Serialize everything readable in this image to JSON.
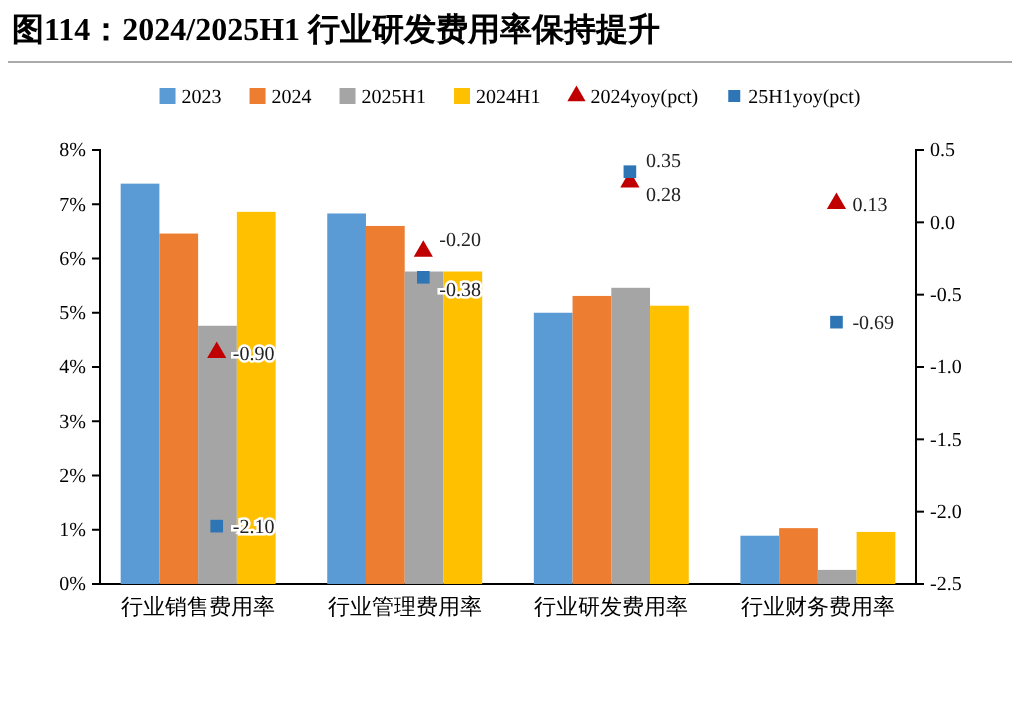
{
  "chart_data": {
    "type": "bar",
    "title": "图114：2024/2025H1 行业研发费用率保持提升",
    "categories": [
      "行业销售费用率",
      "行业管理费用率",
      "行业研发费用率",
      "行业财务费用率"
    ],
    "series": [
      {
        "name": "2023",
        "color": "#5b9bd5",
        "values": [
          7.38,
          6.83,
          5.0,
          0.89
        ]
      },
      {
        "name": "2024",
        "color": "#ed7d31",
        "values": [
          6.46,
          6.6,
          5.31,
          1.03
        ]
      },
      {
        "name": "2025H1",
        "color": "#a5a5a5",
        "values": [
          4.76,
          5.76,
          5.46,
          0.26
        ]
      },
      {
        "name": "2024H1",
        "color": "#ffc000",
        "values": [
          6.86,
          5.76,
          5.13,
          0.96
        ]
      },
      {
        "name": "2024yoy(pct)",
        "type": "scatter",
        "axis": "y2",
        "marker": "triangle",
        "color": "#c00000",
        "values": [
          -0.9,
          -0.2,
          0.28,
          0.13
        ],
        "value_labels": [
          "-0.90",
          "-0.20",
          "0.28",
          "0.13"
        ]
      },
      {
        "name": "25H1yoy(pct)",
        "type": "scatter",
        "axis": "y2",
        "marker": "square",
        "color": "#2e75b6",
        "values": [
          -2.1,
          -0.38,
          0.35,
          -0.69
        ],
        "value_labels": [
          "-2.10",
          "-0.38",
          "0.35",
          "-0.69"
        ]
      }
    ],
    "ylim": [
      0,
      8
    ],
    "yticks": [
      {
        "value": 0,
        "label": "0%"
      },
      {
        "value": 1,
        "label": "1%"
      },
      {
        "value": 2,
        "label": "2%"
      },
      {
        "value": 3,
        "label": "3%"
      },
      {
        "value": 4,
        "label": "4%"
      },
      {
        "value": 5,
        "label": "5%"
      },
      {
        "value": 6,
        "label": "6%"
      },
      {
        "value": 7,
        "label": "7%"
      },
      {
        "value": 8,
        "label": "8%"
      }
    ],
    "y2lim": [
      -2.5,
      0.5
    ],
    "y2ticks": [
      {
        "value": -2.5,
        "label": "-2.5"
      },
      {
        "value": -2,
        "label": "-2.0"
      },
      {
        "value": -1.5,
        "label": "-1.5"
      },
      {
        "value": -1,
        "label": "-1.0"
      },
      {
        "value": -0.5,
        "label": "-0.5"
      },
      {
        "value": 0,
        "label": "0.0"
      },
      {
        "value": 0.5,
        "label": "0.5"
      }
    ],
    "legend": "top",
    "grid": false
  }
}
